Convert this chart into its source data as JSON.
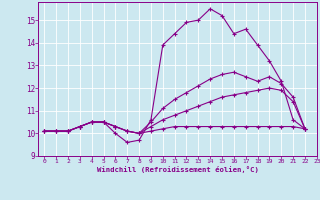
{
  "xlabel": "Windchill (Refroidissement éolien,°C)",
  "xlim": [
    -0.5,
    23
  ],
  "ylim": [
    9,
    15.8
  ],
  "yticks": [
    9,
    10,
    11,
    12,
    13,
    14,
    15
  ],
  "xticks": [
    0,
    1,
    2,
    3,
    4,
    5,
    6,
    7,
    8,
    9,
    10,
    11,
    12,
    13,
    14,
    15,
    16,
    17,
    18,
    19,
    20,
    21,
    22,
    23
  ],
  "bg_color": "#cce8f0",
  "grid_color": "#ffffff",
  "line_color": "#880088",
  "series": [
    [
      10.1,
      10.1,
      10.1,
      10.3,
      10.5,
      10.5,
      10.0,
      9.6,
      9.7,
      10.6,
      13.9,
      14.4,
      14.9,
      15.0,
      15.5,
      15.2,
      14.4,
      14.6,
      13.9,
      13.2,
      12.3,
      10.6,
      10.2
    ],
    [
      10.1,
      10.1,
      10.1,
      10.3,
      10.5,
      10.5,
      10.3,
      10.1,
      10.0,
      10.5,
      11.1,
      11.5,
      11.8,
      12.1,
      12.4,
      12.6,
      12.7,
      12.5,
      12.3,
      12.5,
      12.2,
      11.6,
      10.2
    ],
    [
      10.1,
      10.1,
      10.1,
      10.3,
      10.5,
      10.5,
      10.3,
      10.1,
      10.0,
      10.3,
      10.6,
      10.8,
      11.0,
      11.2,
      11.4,
      11.6,
      11.7,
      11.8,
      11.9,
      12.0,
      11.9,
      11.4,
      10.2
    ],
    [
      10.1,
      10.1,
      10.1,
      10.3,
      10.5,
      10.5,
      10.3,
      10.1,
      10.0,
      10.1,
      10.2,
      10.3,
      10.3,
      10.3,
      10.3,
      10.3,
      10.3,
      10.3,
      10.3,
      10.3,
      10.3,
      10.3,
      10.2
    ]
  ]
}
